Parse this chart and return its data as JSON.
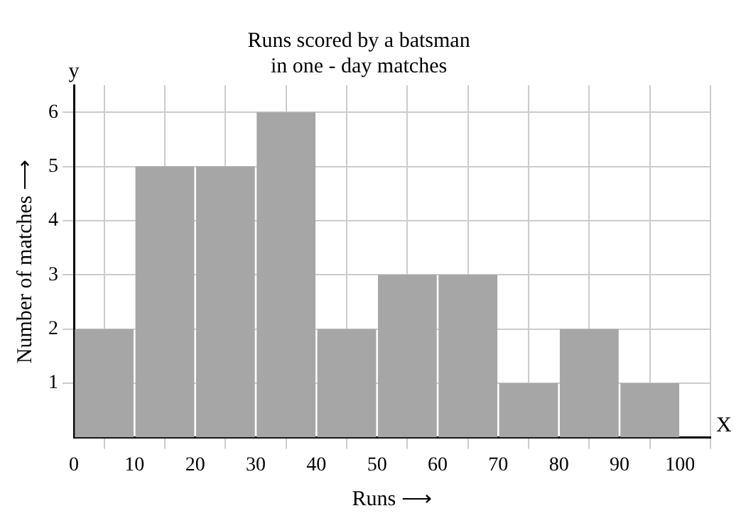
{
  "chart_data": {
    "type": "histogram",
    "title": "Runs scored by a batsman\nin one - day matches",
    "xlabel": "Runs ⟶",
    "ylabel": "Number of matches ⟶",
    "bins": [
      0,
      10,
      20,
      30,
      40,
      50,
      60,
      70,
      80,
      90,
      100
    ],
    "values": [
      2,
      5,
      5,
      6,
      2,
      3,
      3,
      1,
      2,
      1
    ],
    "color": "#a6a6a6",
    "xlim": [
      0,
      105
    ],
    "xticks": [
      0,
      10,
      20,
      30,
      40,
      50,
      60,
      70,
      80,
      90,
      100
    ],
    "ylim": [
      0,
      6.5
    ],
    "yticks": [
      1,
      2,
      3,
      4,
      5,
      6
    ],
    "grid": true,
    "annotations": [
      "y",
      "X"
    ]
  }
}
